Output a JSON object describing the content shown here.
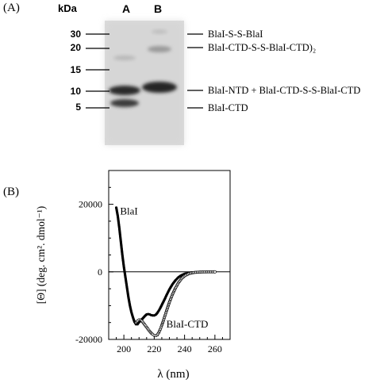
{
  "panel_a": {
    "label": "(A)",
    "kda_label": "kDa",
    "lane_labels": [
      "A",
      "B"
    ],
    "markers": [
      "30",
      "20",
      "15",
      "10",
      "5"
    ],
    "bands": [
      "BlaI-S-S-BlaI",
      "BlaI-CTD-S-S-BlaI-CTD)₂",
      "BlaI-NTD + BlaI-CTD-S-S-BlaI-CTD",
      "BlaI-CTD"
    ]
  },
  "panel_b": {
    "label": "(B)"
  },
  "chart_data": {
    "type": "line",
    "xlabel": "λ  (nm)",
    "ylabel": "[Θ] (deg. cm². dmol⁻¹)",
    "xlim": [
      190,
      270
    ],
    "ylim": [
      -20000,
      30000
    ],
    "x_ticks": [
      "200",
      "220",
      "240",
      "260"
    ],
    "y_ticks": [
      "20000",
      "0",
      "-20000"
    ],
    "series": [
      {
        "name": "BlaI",
        "style": "filled-markers",
        "x": [
          195,
          196,
          197,
          198,
          199,
          200,
          201,
          202,
          203,
          204,
          205,
          206,
          207,
          208,
          209,
          210,
          211,
          212,
          213,
          214,
          215,
          216,
          217,
          218,
          219,
          220,
          221,
          222,
          223,
          224,
          225,
          226,
          227,
          228,
          230,
          232,
          234,
          236,
          238,
          240,
          243,
          246,
          250,
          255,
          260
        ],
        "y": [
          19000,
          16500,
          13000,
          9000,
          5000,
          1500,
          -1500,
          -4500,
          -7500,
          -10000,
          -12000,
          -13500,
          -14800,
          -15500,
          -15500,
          -14900,
          -14500,
          -14000,
          -13500,
          -13000,
          -12600,
          -12500,
          -12600,
          -12800,
          -12900,
          -12900,
          -12700,
          -12200,
          -11500,
          -10700,
          -9800,
          -8900,
          -8000,
          -7000,
          -5200,
          -3700,
          -2500,
          -1600,
          -1000,
          -600,
          -300,
          -150,
          -50,
          0,
          0
        ]
      },
      {
        "name": "BlaI-CTD",
        "style": "open-markers",
        "x": [
          208,
          209,
          210,
          211,
          212,
          213,
          214,
          215,
          216,
          217,
          218,
          219,
          220,
          221,
          222,
          223,
          224,
          225,
          226,
          227,
          228,
          230,
          232,
          234,
          236,
          238,
          240,
          243,
          246,
          250,
          255,
          260
        ],
        "y": [
          -15000,
          -14500,
          -14200,
          -14200,
          -14600,
          -15200,
          -15800,
          -16400,
          -17000,
          -17600,
          -18100,
          -18500,
          -18800,
          -18900,
          -18700,
          -18000,
          -17000,
          -15800,
          -14500,
          -13100,
          -11700,
          -9000,
          -6700,
          -4800,
          -3200,
          -2000,
          -1200,
          -500,
          -200,
          -50,
          0,
          0
        ]
      }
    ]
  }
}
